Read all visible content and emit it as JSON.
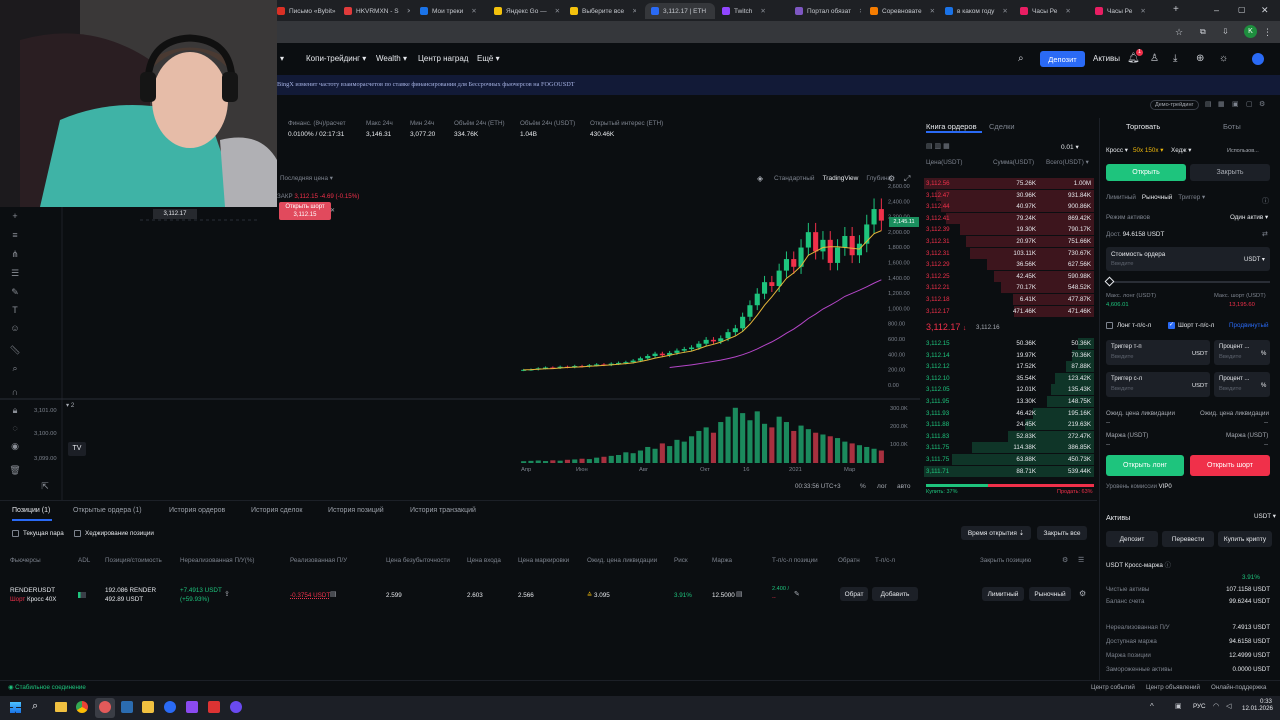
{
  "browser": {
    "tabs": [
      {
        "label": "Письмо «Bybit»",
        "color": "#d93025"
      },
      {
        "label": "HKVRMXN - S",
        "color": "#e03b3b"
      },
      {
        "label": "Мои треки",
        "color": "#1a73e8"
      },
      {
        "label": "Яндекс Go —",
        "color": "#f4c20d"
      },
      {
        "label": "Выберите все",
        "color": "#f4c20d"
      },
      {
        "label": "3,112.17 | ETH",
        "color": "#2a6af5"
      },
      {
        "label": "Twitch",
        "color": "#9146ff"
      },
      {
        "label": "Портал обязат",
        "color": "#7e57c2"
      },
      {
        "label": "Соревновате",
        "color": "#f57c00"
      },
      {
        "label": "в каком году",
        "color": "#1a73e8"
      },
      {
        "label": "Часы Ре",
        "color": "#e91e63"
      },
      {
        "label": "Часы Ре",
        "color": "#e91e63"
      }
    ],
    "profile": "K"
  },
  "nav": {
    "items": [
      "Копи-трейдинг",
      "Wealth",
      "Центр наград",
      "Ещё"
    ],
    "deposit": "Депозит",
    "assets": "Активы",
    "notif_count": "1"
  },
  "banner": "BingX изменит частоту взаиморасчетов по ставке финансирования для Бессрочных фьючерсов на FOGOUSDT",
  "demo_label": "Демо-трейдинг",
  "stats": [
    {
      "label": "Финанс. (8ч)/расчет",
      "value": "0.0100% / 02:17:31"
    },
    {
      "label": "Макс 24ч",
      "value": "3,146.31"
    },
    {
      "label": "Мин 24ч",
      "value": "3,077.20"
    },
    {
      "label": "Объём 24ч (ETH)",
      "value": "334.76K"
    },
    {
      "label": "Объём 24ч (USDT)",
      "value": "1.04B"
    },
    {
      "label": "Открытый интерес (ETH)",
      "value": "430.46K"
    }
  ],
  "chart": {
    "views": [
      "Стандартный",
      "TradingView",
      "Глубина"
    ],
    "price_type": "Последняя цена",
    "ohlc_prefix": "ЗАКР",
    "ohlc": "3,112.15",
    "ohlc_change": "-4.69 (-0.15%)",
    "order_tag": "Открыть шорт",
    "order_price": "3,112.15",
    "price_label": "3,112.17",
    "left_prices": [
      "3,101.00",
      "3,100.00",
      "3,099.00"
    ],
    "axis_y": [
      "2,600.00",
      "2,400.00",
      "2,200.00",
      "2,000.00",
      "1,800.00",
      "1,600.00",
      "1,400.00",
      "1,200.00",
      "1,000.00",
      "800.00",
      "600.00",
      "400.00",
      "200.00",
      "0.00"
    ],
    "vol_axis": [
      "300.0K",
      "200.0K",
      "100.0K"
    ],
    "x_labels": [
      "Апр",
      "Июн",
      "Авг",
      "Окт",
      "16",
      "2021",
      "Мар"
    ],
    "time": "00:33:56 UTC+3",
    "pct": "%",
    "log": "лог",
    "auto": "авто",
    "price_tag": "2,145.11",
    "indicator_count": "2"
  },
  "chart_data": {
    "type": "candlestick",
    "ylim": [
      0,
      2600
    ],
    "x_labels": [
      "Апр",
      "Июн",
      "Авг",
      "Окт",
      "16",
      "2021",
      "Мар"
    ],
    "close": [
      210,
      215,
      230,
      240,
      235,
      250,
      245,
      260,
      255,
      270,
      280,
      275,
      290,
      300,
      310,
      330,
      360,
      390,
      420,
      400,
      430,
      460,
      480,
      500,
      550,
      600,
      580,
      620,
      700,
      750,
      900,
      1050,
      1200,
      1350,
      1300,
      1500,
      1650,
      1550,
      1800,
      2000,
      1750,
      1900,
      1600,
      1800,
      1950,
      1700,
      1850,
      2100,
      2300,
      2150
    ],
    "volume": [
      10,
      12,
      14,
      11,
      15,
      13,
      18,
      20,
      24,
      22,
      30,
      35,
      40,
      45,
      60,
      55,
      70,
      90,
      80,
      110,
      95,
      130,
      120,
      150,
      180,
      200,
      170,
      230,
      260,
      310,
      280,
      240,
      290,
      220,
      200,
      260,
      230,
      180,
      210,
      190,
      170,
      160,
      150,
      140,
      120,
      110,
      100,
      90,
      80,
      70
    ]
  },
  "orderbook": {
    "tabs": [
      "Книга ордеров",
      "Сделки"
    ],
    "step": "0.01",
    "headers": [
      "Цена(USDT)",
      "Сумма(USDT)",
      "Всего(USDT)"
    ],
    "asks": [
      [
        "3,112.56",
        "75.26K",
        "1.00M"
      ],
      [
        "3,112.47",
        "30.96K",
        "931.84K"
      ],
      [
        "3,112.44",
        "40.97K",
        "900.86K"
      ],
      [
        "3,112.41",
        "79.24K",
        "869.42K"
      ],
      [
        "3,112.39",
        "19.30K",
        "790.17K"
      ],
      [
        "3,112.31",
        "20.97K",
        "751.66K"
      ],
      [
        "3,112.31",
        "103.11K",
        "730.67K"
      ],
      [
        "3,112.29",
        "36.56K",
        "627.56K"
      ],
      [
        "3,112.25",
        "42.45K",
        "590.98K"
      ],
      [
        "3,112.21",
        "70.17K",
        "548.52K"
      ],
      [
        "3,112.18",
        "6.41K",
        "477.87K"
      ],
      [
        "3,112.17",
        "471.46K",
        "471.46K"
      ]
    ],
    "mid_price": "3,112.17",
    "mid_mark": "3,112.16",
    "bids": [
      [
        "3,112.15",
        "50.36K",
        "50.36K"
      ],
      [
        "3,112.14",
        "19.97K",
        "70.36K"
      ],
      [
        "3,112.12",
        "17.52K",
        "87.88K"
      ],
      [
        "3,112.10",
        "35.54K",
        "123.42K"
      ],
      [
        "3,112.05",
        "12.01K",
        "135.43K"
      ],
      [
        "3,111.95",
        "13.30K",
        "148.75K"
      ],
      [
        "3,111.93",
        "46.42K",
        "195.16K"
      ],
      [
        "3,111.88",
        "24.45K",
        "219.63K"
      ],
      [
        "3,111.83",
        "52.83K",
        "272.47K"
      ],
      [
        "3,111.75",
        "114.38K",
        "386.85K"
      ],
      [
        "3,111.75",
        "63.88K",
        "450.73K"
      ],
      [
        "3,111.71",
        "88.71K",
        "539.44K"
      ]
    ],
    "buy_label": "Купить: 37%",
    "sell_label": "Продать: 63%",
    "buy_pct": 0.37
  },
  "trade": {
    "tabs": [
      "Торговать",
      "Боты"
    ],
    "margin_mode": "Кросс",
    "leverage": "50x 150x",
    "hedge": "Хедж",
    "use": "Использов...",
    "open": "Открыть",
    "close": "Закрыть",
    "order_types": [
      "Лимитный",
      "Рыночный",
      "Триггер"
    ],
    "mode_label": "Режим активов",
    "mode_value": "Один актив",
    "available_label": "Дост.",
    "available_value": "94.6158 USDT",
    "cost_label": "Стоимость ордера",
    "cost_placeholder": "Введите",
    "cost_unit": "USDT",
    "max_long_label": "Макс. лонг (USDT)",
    "max_long_value": "4,606.01",
    "max_short_label": "Макс. шорт (USDT)",
    "max_short_value": "13,195.60",
    "tpsl_long": "Лонг т-п/с-л",
    "tpsl_short": "Шорт т-п/с-л",
    "advanced": "Продвинутый",
    "trigger_tp": "Триггер т-п",
    "trigger_sl": "Триггер с-л",
    "input_placeholder": "Введите",
    "unit_usdt": "USDT",
    "percent_label": "Процент ...",
    "pct_sign": "%",
    "liq_label": "Ожид. цена ликвидации",
    "margin_label": "Маржа (USDT)",
    "dash": "--",
    "open_long": "Открыть лонг",
    "open_short": "Открыть шорт",
    "fee_label": "Уровень комиссии",
    "fee_value": "VIP0"
  },
  "assets": {
    "title": "Активы",
    "currency": "USDT",
    "buttons": [
      "Депозит",
      "Перевести",
      "Купить крипту"
    ],
    "account": "USDT Кросс-маржа",
    "pct": "3.91%",
    "rows": [
      {
        "label": "Чистые активы",
        "value": "107.1158 USDT"
      },
      {
        "label": "Баланс счета",
        "value": "99.6244 USDT"
      },
      {
        "label": "Нереализованная П/У",
        "value": "7.4913 USDT"
      },
      {
        "label": "Доступная маржа",
        "value": "94.6158 USDT"
      },
      {
        "label": "Маржа позиции",
        "value": "12.4999 USDT"
      },
      {
        "label": "Замороженные активы",
        "value": "0.0000 USDT"
      }
    ]
  },
  "positions": {
    "tabs": [
      "Позиции (1)",
      "Открытые ордера (1)",
      "История ордеров",
      "История сделок",
      "История позиций",
      "История транзакций"
    ],
    "current_pair": "Текущая пара",
    "hedge_positions": "Хеджирование позиции",
    "sort": "Время открытия",
    "close_all": "Закрыть все",
    "headers": [
      "Фьючерсы",
      "ADL",
      "Позиция/стоимость",
      "Нереализованная П/У(%)",
      "Реализованная П/У",
      "Цена безубыточности",
      "Цена входа",
      "Цена маркировки",
      "Ожид. цена ликвидации",
      "Риск",
      "Маржа",
      "Т-п/с-л позиции",
      "Обратн",
      "Т-п/с-л",
      "Закрыть позицию"
    ],
    "row": {
      "symbol": "RENDERUSDT",
      "side": "Шорт",
      "mode": "Кросс 40X",
      "size": "192.086 RENDER",
      "value": "492.89 USDT",
      "upnl": "+7.4913 USDT",
      "upnl_pct": "(+59.93%)",
      "rpnl": "-0.3754 USDT",
      "breakeven": "2.599",
      "entry": "2.603",
      "mark": "2.566",
      "liq": "3.095",
      "risk": "3.91%",
      "margin": "12.5000",
      "tp": "2.400 /",
      "sl": "--",
      "reverse": "Обрат",
      "add": "Добавить",
      "limit": "Лимитный",
      "market": "Рыночный"
    }
  },
  "status": {
    "connection": "Стабильное соединение",
    "links": [
      "Центр событий",
      "Центр объявлений",
      "Онлайн-поддержка"
    ]
  },
  "taskbar": {
    "lang": "РУС",
    "time": "0:33",
    "date": "12.01.2026"
  }
}
